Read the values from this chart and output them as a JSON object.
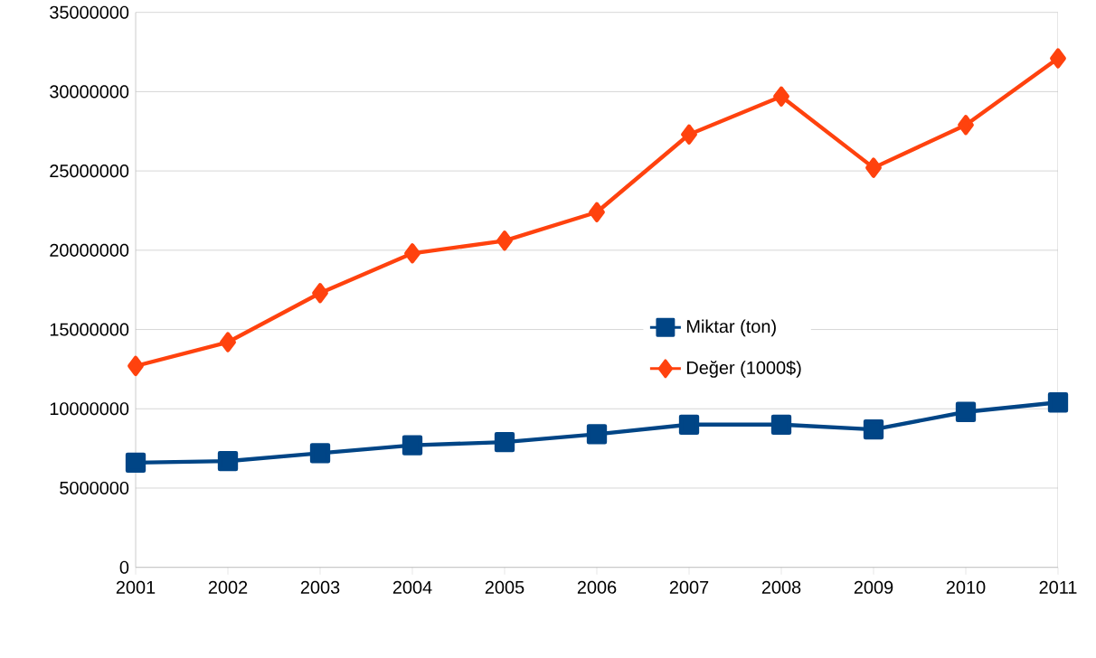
{
  "chart_data": {
    "type": "line",
    "categories": [
      "2001",
      "2002",
      "2003",
      "2004",
      "2005",
      "2006",
      "2007",
      "2008",
      "2009",
      "2010",
      "2011"
    ],
    "series": [
      {
        "name": "Miktar (ton)",
        "color": "#004586",
        "marker": "square",
        "values": [
          6600000,
          6700000,
          7200000,
          7700000,
          7900000,
          8400000,
          9000000,
          9000000,
          8700000,
          9800000,
          10400000
        ]
      },
      {
        "name": "Değer (1000$)",
        "color": "#ff420e",
        "marker": "diamond",
        "values": [
          12700000,
          14200000,
          17300000,
          19800000,
          20600000,
          22400000,
          27300000,
          29700000,
          25200000,
          27900000,
          32100000
        ]
      }
    ],
    "ylim": [
      0,
      35000000
    ],
    "yticks": [
      0,
      5000000,
      10000000,
      15000000,
      20000000,
      25000000,
      30000000,
      35000000
    ],
    "grid": "y",
    "legend": "center",
    "line_style": "solid"
  }
}
